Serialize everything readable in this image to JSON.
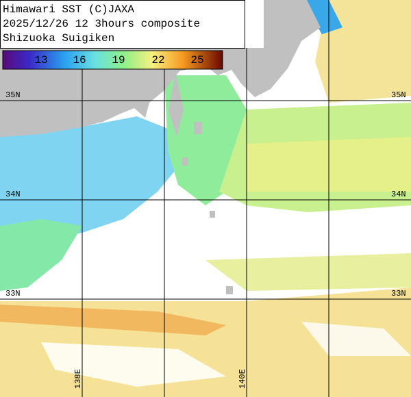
{
  "header": {
    "lines": [
      "Himawari SST (C)JAXA",
      "2025/12/26 12 3hours composite",
      "Shizuoka Suigiken"
    ]
  },
  "colorbar": {
    "labels": [
      "13",
      "16",
      "19",
      "22",
      "25"
    ]
  },
  "grid": {
    "latitudes": [
      "35N",
      "34N",
      "33N"
    ],
    "longitudes": [
      "138E",
      "140E"
    ]
  }
}
